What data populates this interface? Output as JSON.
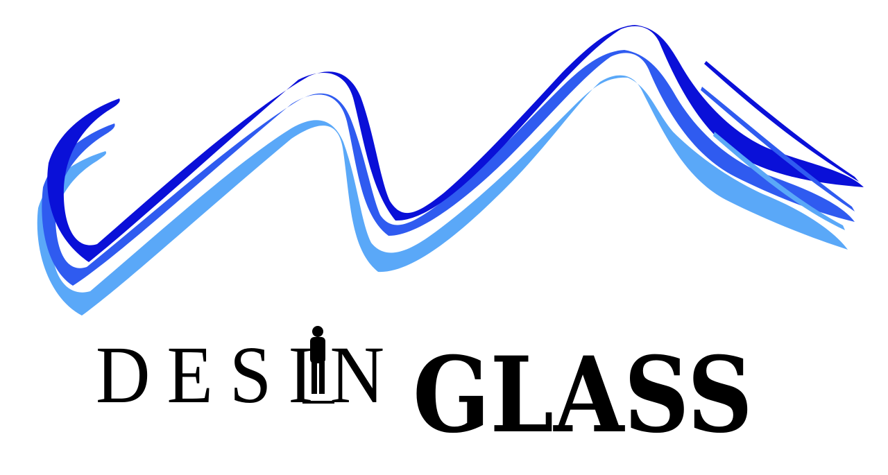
{
  "logo": {
    "name_part1": "DESIN",
    "name_part2": "GLASS"
  },
  "colors": {
    "wave_dark": "#0a10d8",
    "wave_mid": "#2f5bf0",
    "wave_light": "#5aa8f8",
    "text": "#000000",
    "background": "#ffffff"
  }
}
